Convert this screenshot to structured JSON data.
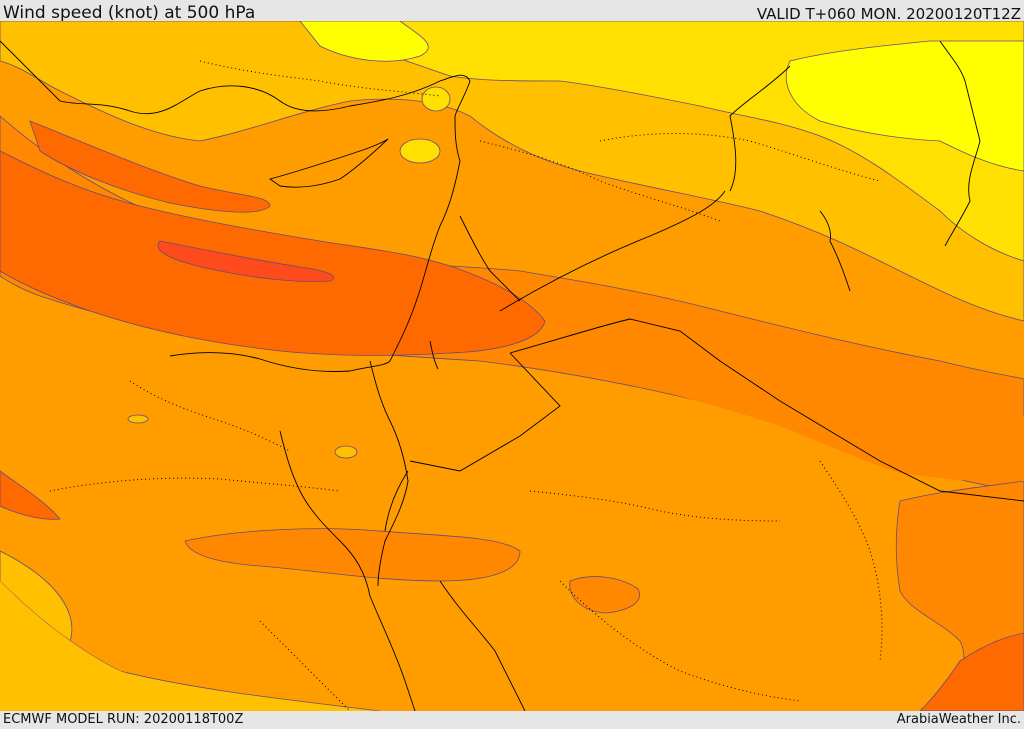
{
  "header": {
    "title": "Wind speed (knot) at 500 hPa",
    "valid": "VALID T+060 MON. 20200120T12Z"
  },
  "footer": {
    "model_run": "ECMWF MODEL RUN: 20200118T00Z",
    "credit": "ArabiaWeather Inc."
  },
  "map": {
    "color_scale": [
      "#ffff00",
      "#ffe000",
      "#ffc000",
      "#ffa000",
      "#ff8800",
      "#ff6a00",
      "#ff4a1c"
    ],
    "boundary_color": "#000000",
    "contour_color": "#6a4a7a"
  }
}
